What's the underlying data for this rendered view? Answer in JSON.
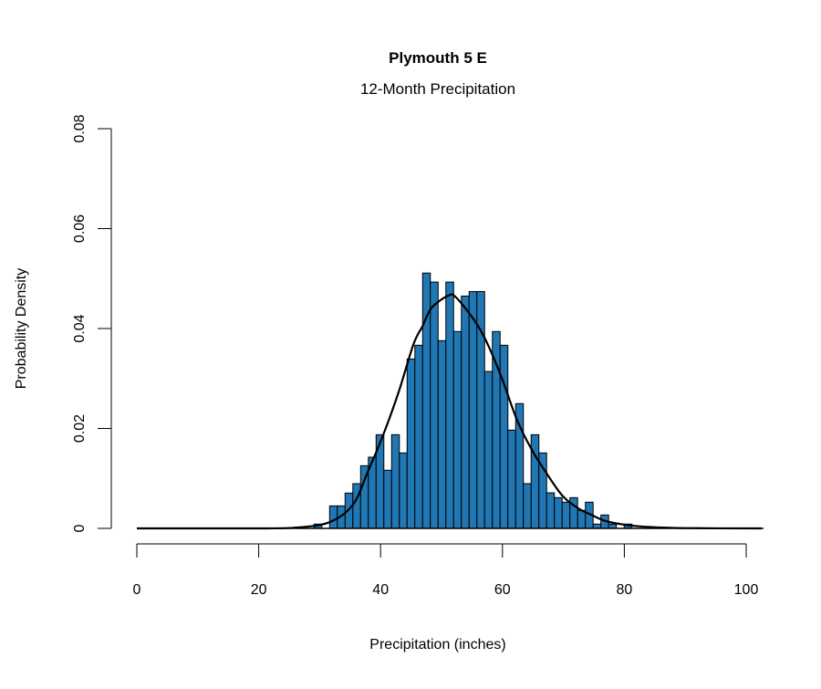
{
  "chart_data": {
    "type": "bar",
    "title": "Plymouth 5 E",
    "subtitle": "12-Month Precipitation",
    "xlabel": "Precipitation (inches)",
    "ylabel": "Probability Density",
    "xlim": [
      0,
      102.5
    ],
    "ylim": [
      0,
      0.08
    ],
    "x_ticks": [
      0,
      20,
      40,
      60,
      80,
      100
    ],
    "x_tick_labels": [
      "0",
      "20",
      "40",
      "60",
      "80",
      "100"
    ],
    "y_ticks": [
      0,
      0.02,
      0.04,
      0.06,
      0.08
    ],
    "y_tick_labels": [
      "0",
      "0.02",
      "0.04",
      "0.06",
      "0.08"
    ],
    "grid": false,
    "bar_color": "#2077b4",
    "curve_color": "#000000",
    "histogram": {
      "bin_start": 29.09,
      "bin_width": 1.272,
      "density": [
        0.00086,
        0,
        0.0045,
        0.0045,
        0.00707,
        0.00895,
        0.01254,
        0.01425,
        0.01875,
        0.01163,
        0.01875,
        0.0151,
        0.0339,
        0.03665,
        0.0511,
        0.0493,
        0.03757,
        0.0493,
        0.0394,
        0.0465,
        0.0474,
        0.0474,
        0.0314,
        0.0394,
        0.03665,
        0.01967,
        0.02497,
        0.00895,
        0.01875,
        0.0151,
        0.00712,
        0.00615,
        0.00524,
        0.00615,
        0.0036,
        0.00524,
        0.00086,
        0.00268,
        0.00086,
        0,
        0.00086
      ]
    },
    "fitted_curve": {
      "x": [
        0,
        20,
        25.45,
        31.44,
        35.43,
        37.92,
        40.42,
        42.92,
        45.4,
        46.9,
        48.4,
        51.15,
        52.4,
        55.39,
        57.38,
        59.88,
        62.38,
        64.87,
        67.37,
        69.87,
        72.35,
        74.85,
        77.35,
        82.34,
        89.82,
        102.5
      ],
      "y": [
        0,
        0,
        0.0001,
        0.00115,
        0.00469,
        0.01138,
        0.01868,
        0.02712,
        0.03686,
        0.04051,
        0.04417,
        0.04661,
        0.04621,
        0.04164,
        0.03738,
        0.03014,
        0.02173,
        0.01563,
        0.01078,
        0.00651,
        0.00407,
        0.00256,
        0.00133,
        0.00042,
        6e-05,
        0
      ]
    }
  }
}
